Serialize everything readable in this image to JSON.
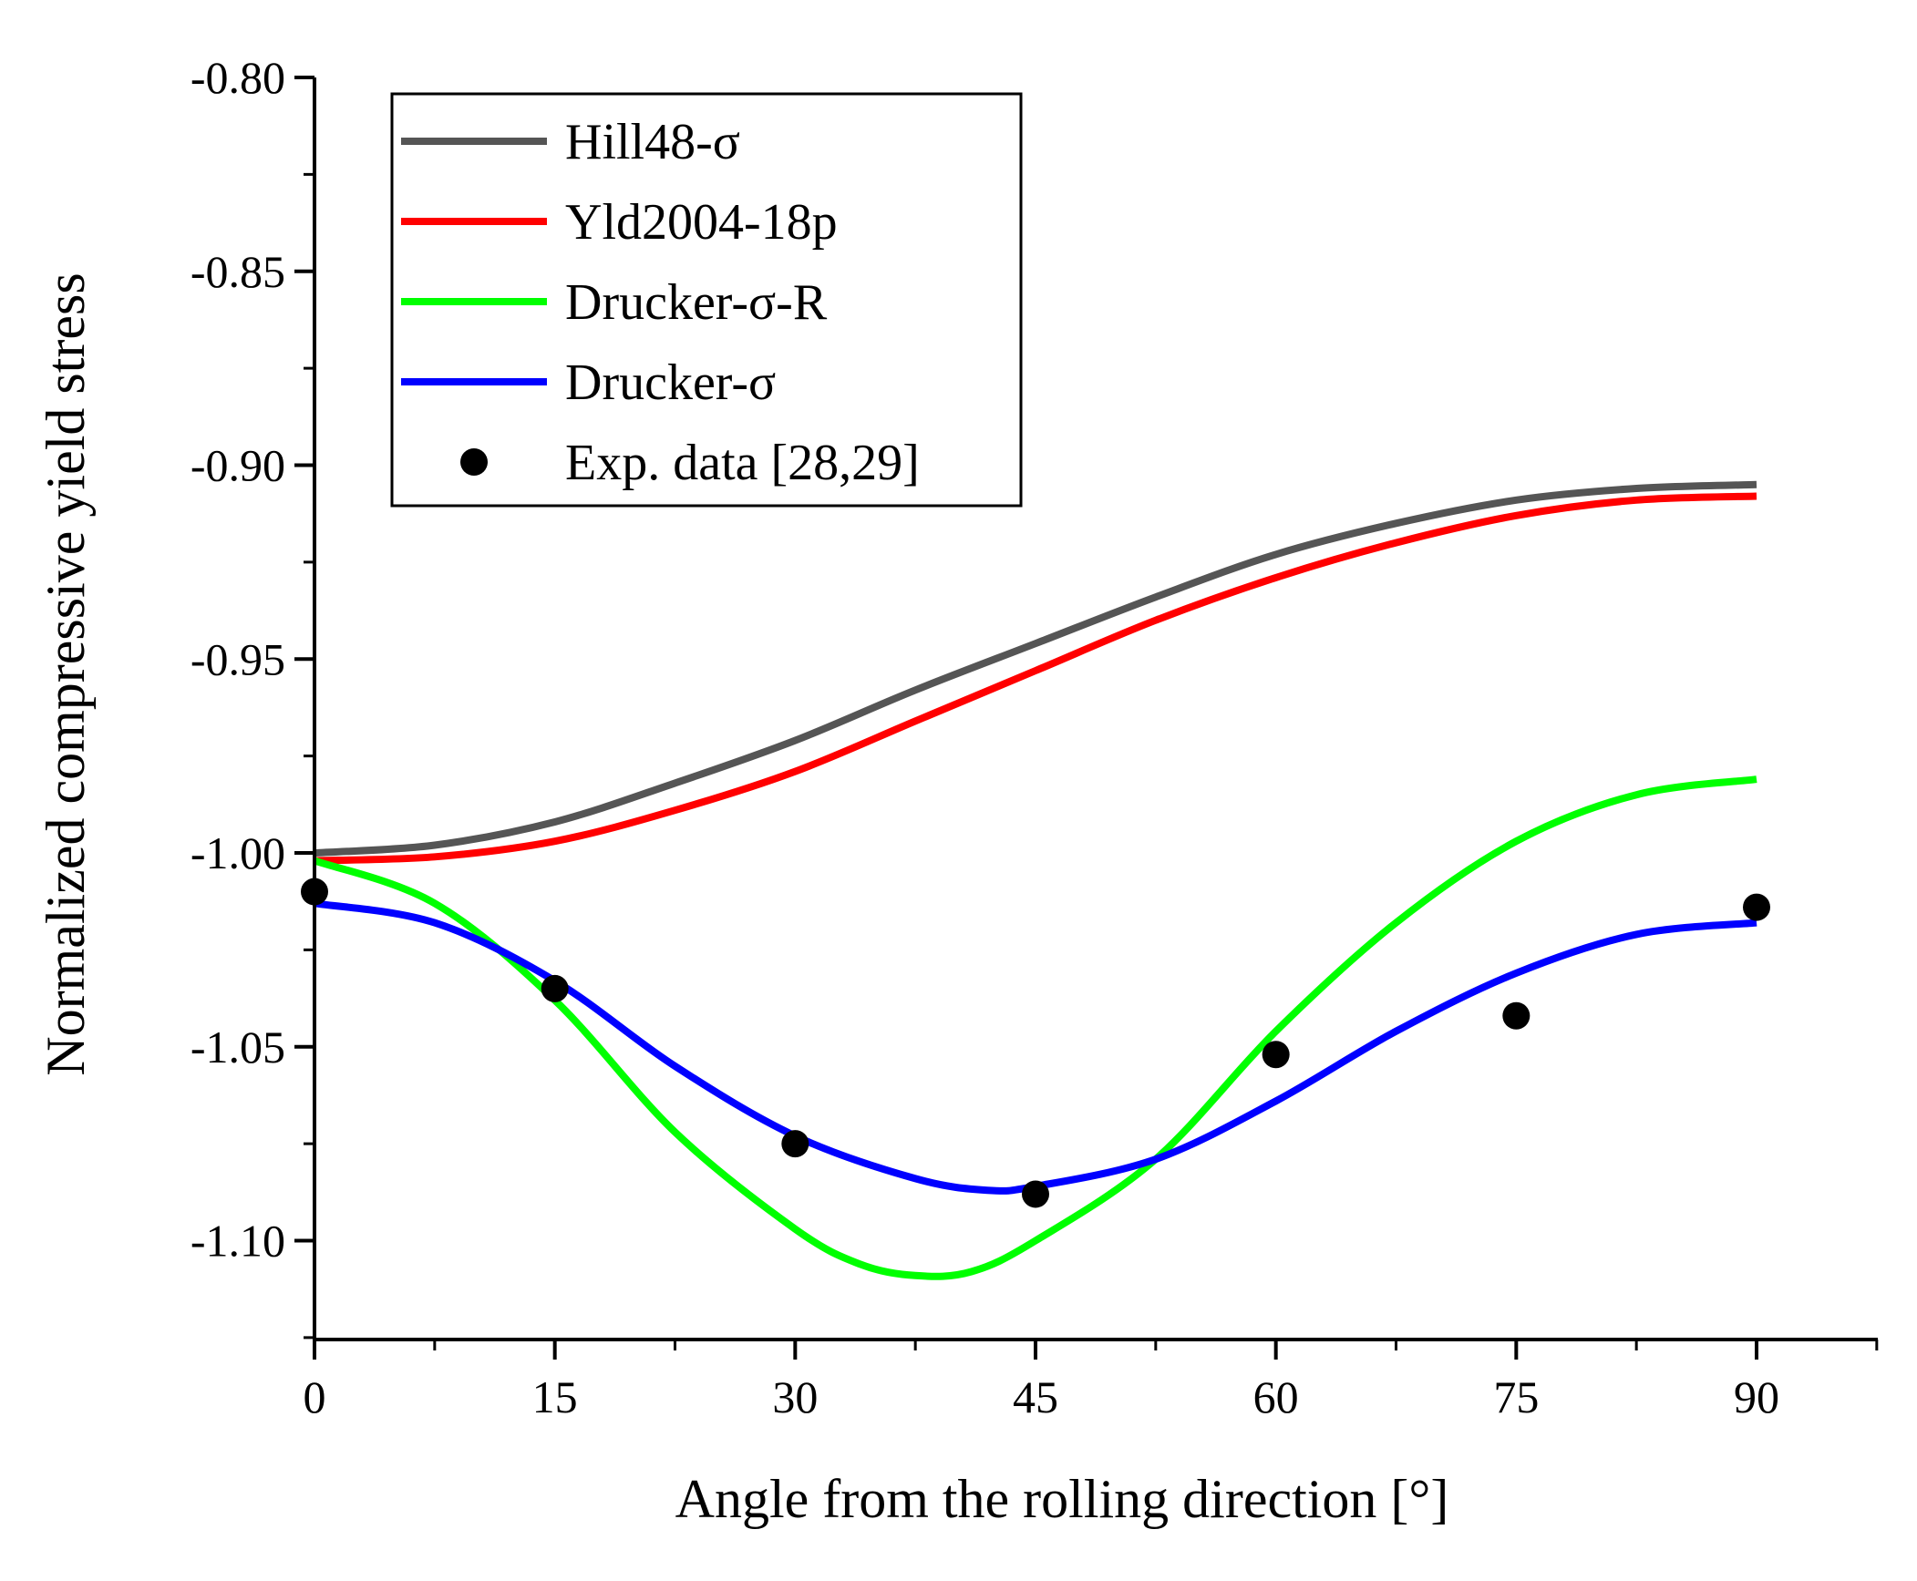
{
  "chart_data": {
    "type": "line",
    "title": "",
    "xlabel": "Angle from the rolling direction [°]",
    "ylabel": "Normalized compressive yield stress",
    "xlim": [
      0,
      97.5
    ],
    "ylim": [
      -1.125,
      -0.8
    ],
    "x_ticks": [
      0,
      15,
      30,
      45,
      60,
      75,
      90
    ],
    "x_tick_labels": [
      "0",
      "15",
      "30",
      "45",
      "60",
      "75",
      "90"
    ],
    "y_ticks": [
      -0.8,
      -0.85,
      -0.9,
      -0.95,
      -1.0,
      -1.05,
      -1.1
    ],
    "y_tick_labels": [
      "-0.80",
      "-0.85",
      "-0.90",
      "-0.95",
      "-1.00",
      "-1.05",
      "-1.10"
    ],
    "legend_position": "top-left",
    "grid": false,
    "series": [
      {
        "name": "Hill48-σ",
        "kind": "line",
        "color": "#555555",
        "x": [
          0,
          7.5,
          15,
          22.5,
          30,
          37.5,
          45,
          52.5,
          60,
          67.5,
          75,
          82.5,
          90
        ],
        "y": [
          -1.0,
          -0.998,
          -0.992,
          -0.982,
          -0.971,
          -0.958,
          -0.946,
          -0.934,
          -0.923,
          -0.915,
          -0.909,
          -0.906,
          -0.905
        ]
      },
      {
        "name": "Yld2004-18p",
        "kind": "line",
        "color": "#ff0000",
        "x": [
          0,
          7.5,
          15,
          22.5,
          30,
          37.5,
          45,
          52.5,
          60,
          67.5,
          75,
          82.5,
          90
        ],
        "y": [
          -1.002,
          -1.001,
          -0.997,
          -0.989,
          -0.979,
          -0.966,
          -0.953,
          -0.94,
          -0.929,
          -0.92,
          -0.913,
          -0.909,
          -0.908
        ]
      },
      {
        "name": "Drucker-σ-R",
        "kind": "line",
        "color": "#00ff00",
        "x": [
          0,
          7.5,
          15,
          22.5,
          30,
          34,
          37.5,
          41,
          45,
          52.5,
          60,
          67.5,
          75,
          82.5,
          90
        ],
        "y": [
          -1.002,
          -1.013,
          -1.038,
          -1.072,
          -1.097,
          -1.106,
          -1.109,
          -1.108,
          -1.1,
          -1.079,
          -1.046,
          -1.018,
          -0.997,
          -0.985,
          -0.981
        ]
      },
      {
        "name": "Drucker-σ",
        "kind": "line",
        "color": "#0000ff",
        "x": [
          0,
          7.5,
          15,
          22.5,
          30,
          37.5,
          42,
          45,
          52.5,
          60,
          67.5,
          75,
          82.5,
          90
        ],
        "y": [
          -1.013,
          -1.018,
          -1.033,
          -1.055,
          -1.073,
          -1.084,
          -1.087,
          -1.086,
          -1.079,
          -1.064,
          -1.046,
          -1.031,
          -1.021,
          -1.018
        ]
      },
      {
        "name": "Exp. data [28,29]",
        "kind": "scatter",
        "color": "#000000",
        "x": [
          0,
          15,
          30,
          45,
          60,
          75,
          90
        ],
        "y": [
          -1.01,
          -1.035,
          -1.075,
          -1.088,
          -1.052,
          -1.042,
          -1.014
        ]
      }
    ]
  }
}
